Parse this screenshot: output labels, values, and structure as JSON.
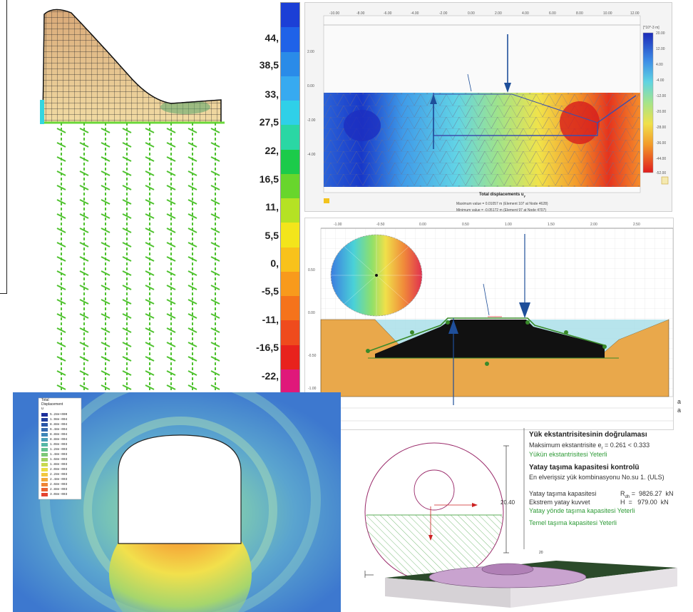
{
  "legend": {
    "labels": [
      "44,",
      "38,5",
      "33,",
      "27,5",
      "22,",
      "16,5",
      "11,",
      "5,5",
      "0,",
      "-5,5",
      "-11,",
      "-16,5",
      "-22,"
    ],
    "band_colors": [
      "#1c3fd6",
      "#1f62e8",
      "#2a8be8",
      "#37aaf0",
      "#2fd0e8",
      "#2ad7a4",
      "#1ccb4a",
      "#68d62c",
      "#b5e224",
      "#f3e51b",
      "#f8c21b",
      "#f89a1c",
      "#f5731b",
      "#ef4b1d",
      "#e8221d",
      "#e0187a"
    ]
  },
  "plaxis_top": {
    "x_ticks": [
      "-10.00",
      "-8.00",
      "-6.00",
      "-4.00",
      "-2.00",
      "0.00",
      "2.00",
      "4.00",
      "6.00",
      "8.00",
      "10.00",
      "12.00"
    ],
    "y_ticks": [
      "2.00",
      "0.00",
      "-2.00",
      "-4.00"
    ],
    "colorbar_unit": "[*10^-3 m]",
    "colorbar_ticks": [
      "20.00",
      "12.00",
      "4.00",
      "-4.00",
      "-12.00",
      "-20.00",
      "-28.00",
      "-36.00",
      "-44.00",
      "-52.00"
    ],
    "title": "Total displacements u",
    "title_sub": "y",
    "max_note": "Maximum value = 0.01057 m (Element 107 at Node 4628)",
    "min_note": "Minimum value = -0.05172 m (Element 97 at Node 4707)"
  },
  "plaxis_mid": {
    "x_ticks": [
      "-1.00",
      "-0.50",
      "0.00",
      "0.50",
      "1.00",
      "1.50",
      "2.00",
      "2.50"
    ],
    "y_ticks": [
      "0.50",
      "0.00",
      "-0.50",
      "-1.00"
    ],
    "side_letters": [
      "a",
      "a"
    ]
  },
  "tunnel": {
    "legend_title": [
      "Total",
      "Displacement",
      "u"
    ],
    "legend_values": [
      "5.28e+000",
      "1.98e-004",
      "8.88e-004",
      "6.48e-004",
      "8.88e-004",
      "8.88e-004",
      "1.08e-003",
      "1.28e-003",
      "1.48e-003",
      "1.68e-003",
      "1.88e-003",
      "2.08e-003",
      "2.28e-003",
      "2.48e-003",
      "2.68e-003",
      "2.88e-003",
      "3.08e-003"
    ],
    "legend_colors": [
      "#1c2f9c",
      "#23409e",
      "#2a57a8",
      "#356bb0",
      "#3f86b8",
      "#4aa0b8",
      "#55b8a6",
      "#63c28f",
      "#7cc876",
      "#a2d160",
      "#c9d94f",
      "#eadc45",
      "#f2c83f",
      "#f2a83a",
      "#ef8536",
      "#e96232",
      "#e4432f"
    ]
  },
  "bearing": {
    "heading_cut": "Yük ekstantrisitesinin doğrulaması",
    "max_ecc_label": "Maksimum ekstantrisite e",
    "max_ecc_sub": "r",
    "max_ecc_value": " = 0.261 < 0.333",
    "ecc_ok": "Yükün ekstantrisitesi Yeterli",
    "horiz_title": "Yatay taşıma kapasitesi kontrolü",
    "worst_combo": "En elverişsiz yük kombinasyonu No.su 1. (ULS)",
    "capacity_label": "Yatay taşıma kapasitesi",
    "capacity_sym": "R",
    "capacity_sub": "dh",
    "capacity_value": "=  9826.27  kN",
    "extreme_label": "Ekstrem yatay kuvvet",
    "extreme_sym": "H",
    "extreme_value": "=   979.00  kN",
    "horiz_ok": "Yatay yönde taşıma kapasitesi Yeterli",
    "foundation_ok": "Temel taşıma kapasitesi Yeterli",
    "dim_value": "20.40",
    "plate_label": "20"
  }
}
